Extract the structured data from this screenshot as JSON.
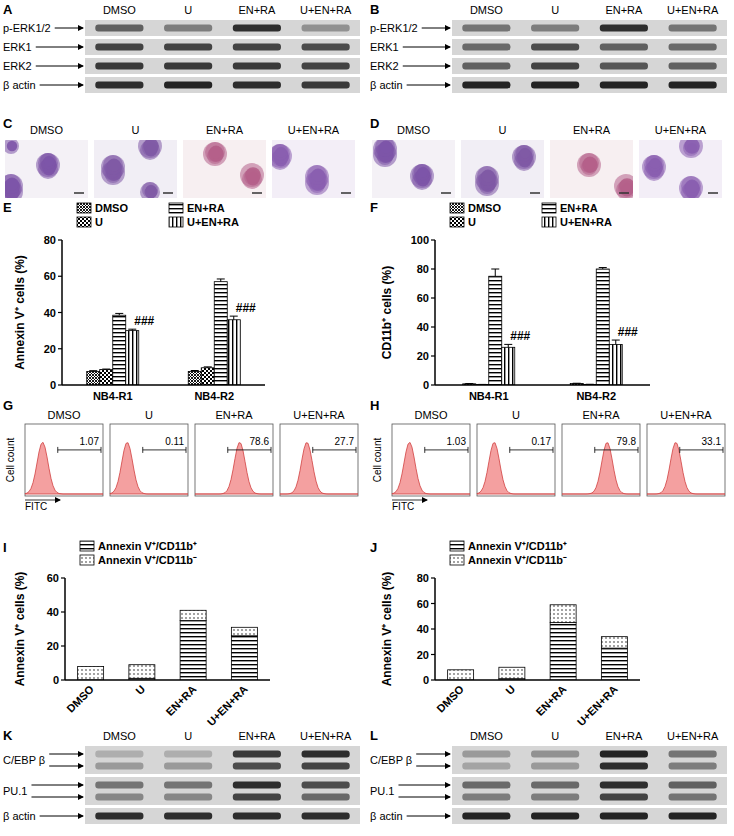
{
  "chart_data": [
    {
      "panel": "E",
      "type": "bar",
      "y_label": "Annexin V⁺ cells (%)",
      "categories": [
        "NB4-R1",
        "NB4-R2"
      ],
      "series": [
        {
          "name": "DMSO",
          "color": "#000000",
          "values": [
            7.5,
            7.5
          ],
          "errors": [
            0.4,
            0.5
          ]
        },
        {
          "name": "U",
          "color": "#000000",
          "values": [
            8.5,
            9.5
          ],
          "errors": [
            0.3,
            0.5
          ]
        },
        {
          "name": "EN+RA",
          "color": "#000000",
          "values": [
            38.5,
            57
          ],
          "errors": [
            1,
            1.5
          ]
        },
        {
          "name": "U+EN+RA",
          "color": "#000000",
          "values": [
            30,
            36
          ],
          "errors": [
            0.8,
            2
          ],
          "annotations": [
            "###",
            "###"
          ]
        }
      ],
      "ylim": [
        0,
        80
      ],
      "yticks": [
        0,
        20,
        40,
        60,
        80
      ],
      "legend": "top-left",
      "grid": false
    },
    {
      "panel": "F",
      "type": "bar",
      "y_label": "CD11b⁺ cells (%)",
      "categories": [
        "NB4-R1",
        "NB4-R2"
      ],
      "series": [
        {
          "name": "DMSO",
          "color": "#000000",
          "values": [
            0.8,
            1
          ],
          "errors": [
            0.2,
            0.2
          ]
        },
        {
          "name": "U",
          "color": "#000000",
          "values": [
            0.3,
            0.4
          ],
          "errors": [
            0.1,
            0.1
          ]
        },
        {
          "name": "EN+RA",
          "color": "#000000",
          "values": [
            75,
            80
          ],
          "errors": [
            5,
            1
          ]
        },
        {
          "name": "U+EN+RA",
          "color": "#000000",
          "values": [
            26,
            28
          ],
          "errors": [
            2,
            3
          ],
          "annotations": [
            "###",
            "###"
          ]
        }
      ],
      "ylim": [
        0,
        100
      ],
      "yticks": [
        0,
        20,
        40,
        60,
        80,
        100
      ],
      "legend": "top-left",
      "grid": false
    },
    {
      "panel": "I",
      "type": "bar",
      "stacked": true,
      "y_label": "Annexin V⁺ cells (%)",
      "categories": [
        "DMSO",
        "U",
        "EN+RA",
        "U+EN+RA"
      ],
      "series": [
        {
          "name": "Annexin V⁺/CD11b⁺",
          "color": "#000000",
          "values": [
            0,
            1,
            35,
            26
          ]
        },
        {
          "name": "Annexin V⁺/CD11b⁻",
          "color": "#000000",
          "values": [
            8,
            8,
            6,
            5
          ]
        }
      ],
      "ylim": [
        0,
        60
      ],
      "yticks": [
        0,
        20,
        40,
        60
      ],
      "legend": "top-left",
      "grid": false
    },
    {
      "panel": "J",
      "type": "bar",
      "stacked": true,
      "y_label": "Annexin V⁺ cells (%)",
      "categories": [
        "DMSO",
        "U",
        "EN+RA",
        "U+EN+RA"
      ],
      "series": [
        {
          "name": "Annexin V⁺/CD11b⁺",
          "color": "#000000",
          "values": [
            0,
            1,
            45,
            25
          ]
        },
        {
          "name": "Annexin V⁺/CD11b⁻",
          "color": "#000000",
          "values": [
            8,
            9,
            14,
            9
          ]
        }
      ],
      "ylim": [
        0,
        80
      ],
      "yticks": [
        0,
        20,
        40,
        60,
        80
      ],
      "legend": "top-left",
      "grid": false
    }
  ],
  "blots": [
    {
      "panel": "A",
      "columns": [
        "DMSO",
        "U",
        "EN+RA",
        "U+EN+RA"
      ],
      "rows": [
        {
          "label": "p-ERK1/2",
          "bands": [
            [
              0.6,
              0.45,
              0.85,
              0.35
            ]
          ]
        },
        {
          "label": "ERK1",
          "bands": [
            [
              0.75,
              0.75,
              0.75,
              0.7
            ]
          ]
        },
        {
          "label": "ERK2",
          "bands": [
            [
              0.8,
              0.8,
              0.8,
              0.75
            ]
          ]
        },
        {
          "label": "β actin",
          "bands": [
            [
              0.85,
              0.9,
              0.85,
              0.8
            ]
          ]
        }
      ]
    },
    {
      "panel": "B",
      "columns": [
        "DMSO",
        "U",
        "EN+RA",
        "U+EN+RA"
      ],
      "rows": [
        {
          "label": "p-ERK1/2",
          "bands": [
            [
              0.5,
              0.45,
              0.85,
              0.5
            ]
          ]
        },
        {
          "label": "ERK1",
          "bands": [
            [
              0.55,
              0.7,
              0.6,
              0.55
            ]
          ]
        },
        {
          "label": "ERK2",
          "bands": [
            [
              0.6,
              0.75,
              0.65,
              0.6
            ]
          ]
        },
        {
          "label": "β actin",
          "bands": [
            [
              0.9,
              0.9,
              0.9,
              0.9
            ]
          ]
        }
      ]
    },
    {
      "panel": "K",
      "columns": [
        "DMSO",
        "U",
        "EN+RA",
        "U+EN+RA"
      ],
      "rows": [
        {
          "label": "C/EBP β",
          "bands": [
            [
              0.2,
              0.2,
              0.8,
              0.85
            ],
            [
              0.3,
              0.3,
              0.7,
              0.75
            ]
          ]
        },
        {
          "label": "PU.1",
          "bands": [
            [
              0.5,
              0.5,
              0.85,
              0.7
            ],
            [
              0.4,
              0.4,
              0.75,
              0.55
            ]
          ]
        },
        {
          "label": "β actin",
          "bands": [
            [
              0.85,
              0.85,
              0.85,
              0.85
            ]
          ]
        }
      ]
    },
    {
      "panel": "L",
      "columns": [
        "DMSO",
        "U",
        "EN+RA",
        "U+EN+RA"
      ],
      "rows": [
        {
          "label": "C/EBP β",
          "bands": [
            [
              0.3,
              0.35,
              0.9,
              0.5
            ],
            [
              0.25,
              0.3,
              0.85,
              0.45
            ]
          ]
        },
        {
          "label": "PU.1",
          "bands": [
            [
              0.55,
              0.55,
              0.85,
              0.6
            ],
            [
              0.45,
              0.45,
              0.75,
              0.5
            ]
          ]
        },
        {
          "label": "β actin",
          "bands": [
            [
              0.9,
              0.9,
              0.9,
              0.9
            ]
          ]
        }
      ]
    }
  ],
  "micrographs": [
    {
      "panel": "C",
      "images": [
        "DMSO",
        "U",
        "EN+RA",
        "U+EN+RA"
      ]
    },
    {
      "panel": "D",
      "images": [
        "DMSO",
        "U",
        "EN+RA",
        "U+EN+RA"
      ]
    }
  ],
  "flow": [
    {
      "panel": "G",
      "y_label": "Cell count",
      "x_label": "FITC",
      "plots": [
        {
          "title": "DMSO",
          "value": 1.07
        },
        {
          "title": "U",
          "value": 0.11
        },
        {
          "title": "EN+RA",
          "value": 78.6
        },
        {
          "title": "U+EN+RA",
          "value": 27.7
        }
      ]
    },
    {
      "panel": "H",
      "y_label": "Cell count",
      "x_label": "FITC",
      "plots": [
        {
          "title": "DMSO",
          "value": 1.03
        },
        {
          "title": "U",
          "value": 0.17
        },
        {
          "title": "EN+RA",
          "value": 79.8
        },
        {
          "title": "U+EN+RA",
          "value": 33.1
        }
      ]
    }
  ]
}
